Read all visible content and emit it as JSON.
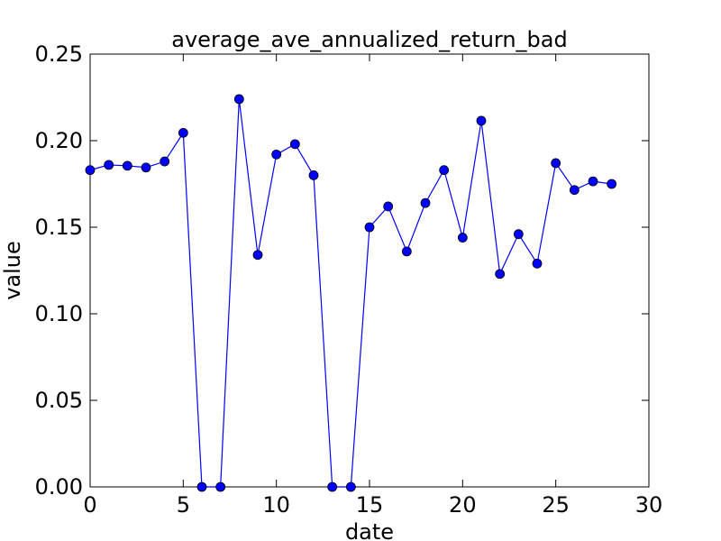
{
  "chart_data": {
    "type": "line",
    "title": "average_ave_annualized_return_bad",
    "xlabel": "date",
    "ylabel": "value",
    "xlim": [
      0,
      30
    ],
    "ylim": [
      0,
      0.25
    ],
    "xticks": [
      0,
      5,
      10,
      15,
      20,
      25,
      30
    ],
    "xtick_labels": [
      "0",
      "5",
      "10",
      "15",
      "20",
      "25",
      "30"
    ],
    "yticks": [
      0,
      0.05,
      0.1,
      0.15,
      0.2,
      0.25
    ],
    "ytick_labels": [
      "0.00",
      "0.05",
      "0.10",
      "0.15",
      "0.20",
      "0.25"
    ],
    "grid": false,
    "series": [
      {
        "color": "#0000ff",
        "marker": "circle",
        "x": [
          0,
          1,
          2,
          3,
          4,
          5,
          6,
          7,
          8,
          9,
          10,
          11,
          12,
          13,
          14,
          15,
          16,
          17,
          18,
          19,
          20,
          21,
          22,
          23,
          24,
          25,
          26,
          27,
          28
        ],
        "values": [
          0.183,
          0.186,
          0.1855,
          0.1845,
          0.188,
          0.2045,
          0.0,
          0.0,
          0.224,
          0.134,
          0.192,
          0.198,
          0.18,
          0.0,
          0.0,
          0.15,
          0.162,
          0.136,
          0.164,
          0.183,
          0.144,
          0.2115,
          0.123,
          0.146,
          0.129,
          0.187,
          0.1715,
          0.1765,
          0.175
        ]
      }
    ]
  }
}
